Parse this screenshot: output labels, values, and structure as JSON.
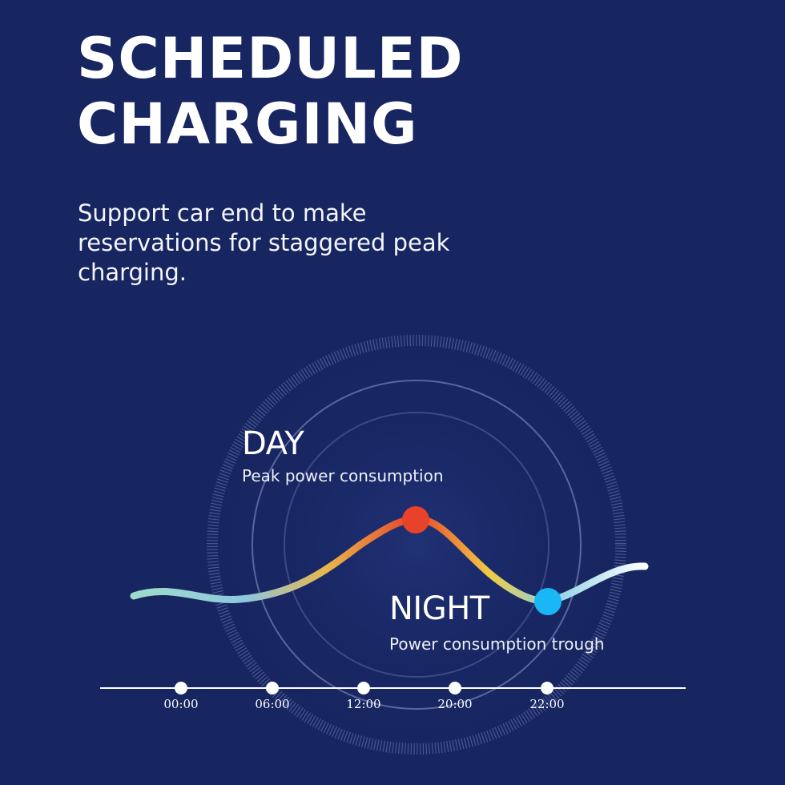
{
  "title": [
    "SCHEDULED",
    "CHARGING"
  ],
  "subtitle": "Support car end to make reservations for staggered peak charging.",
  "day": {
    "title": "DAY",
    "description": "Peak power consumption",
    "marker_color": "#e8432a"
  },
  "night": {
    "title": "NIGHT",
    "description": "Power consumption trough",
    "marker_color": "#19b7f5"
  },
  "timeline": {
    "ticks": [
      "00:00",
      "06:00",
      "12:00",
      "20:00",
      "22:00"
    ]
  },
  "colors": {
    "background": "#172560",
    "text": "#ffffff",
    "curve_gradient": [
      "#8fd4c8",
      "#f2a43a",
      "#e8432a",
      "#f0d24a",
      "#ffffff"
    ]
  }
}
